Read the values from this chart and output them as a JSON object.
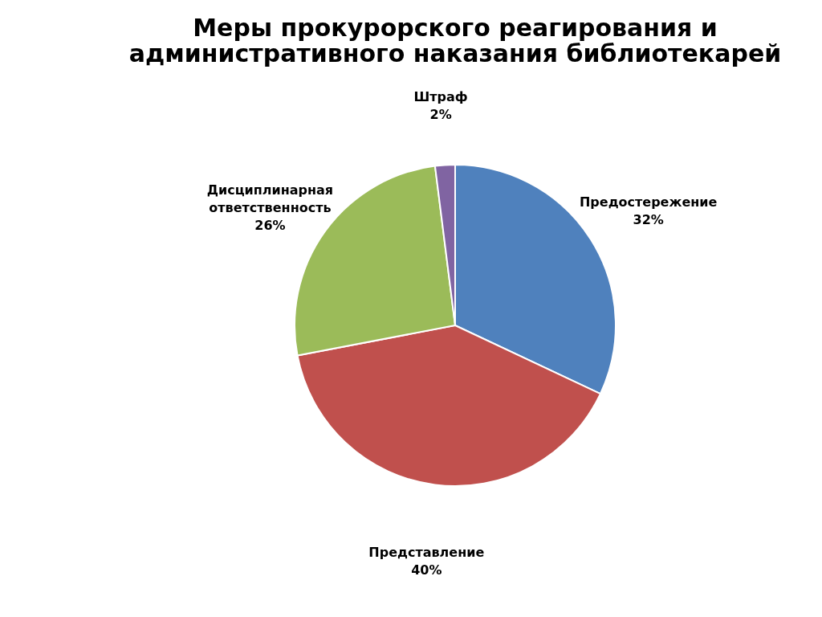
{
  "chart_data": {
    "type": "pie",
    "title": "Меры прокурорского реагирования и административного наказания библиотекарей",
    "categories": [
      "Предостережение",
      "Представление",
      "Дисциплинарная ответственность",
      "Штраф"
    ],
    "values": [
      32,
      40,
      26,
      2
    ],
    "value_labels": [
      "32%",
      "40%",
      "26%",
      "2%"
    ],
    "colors": [
      "#4f81bd",
      "#c0504d",
      "#9bbb59",
      "#8064a2"
    ],
    "legend": false
  }
}
